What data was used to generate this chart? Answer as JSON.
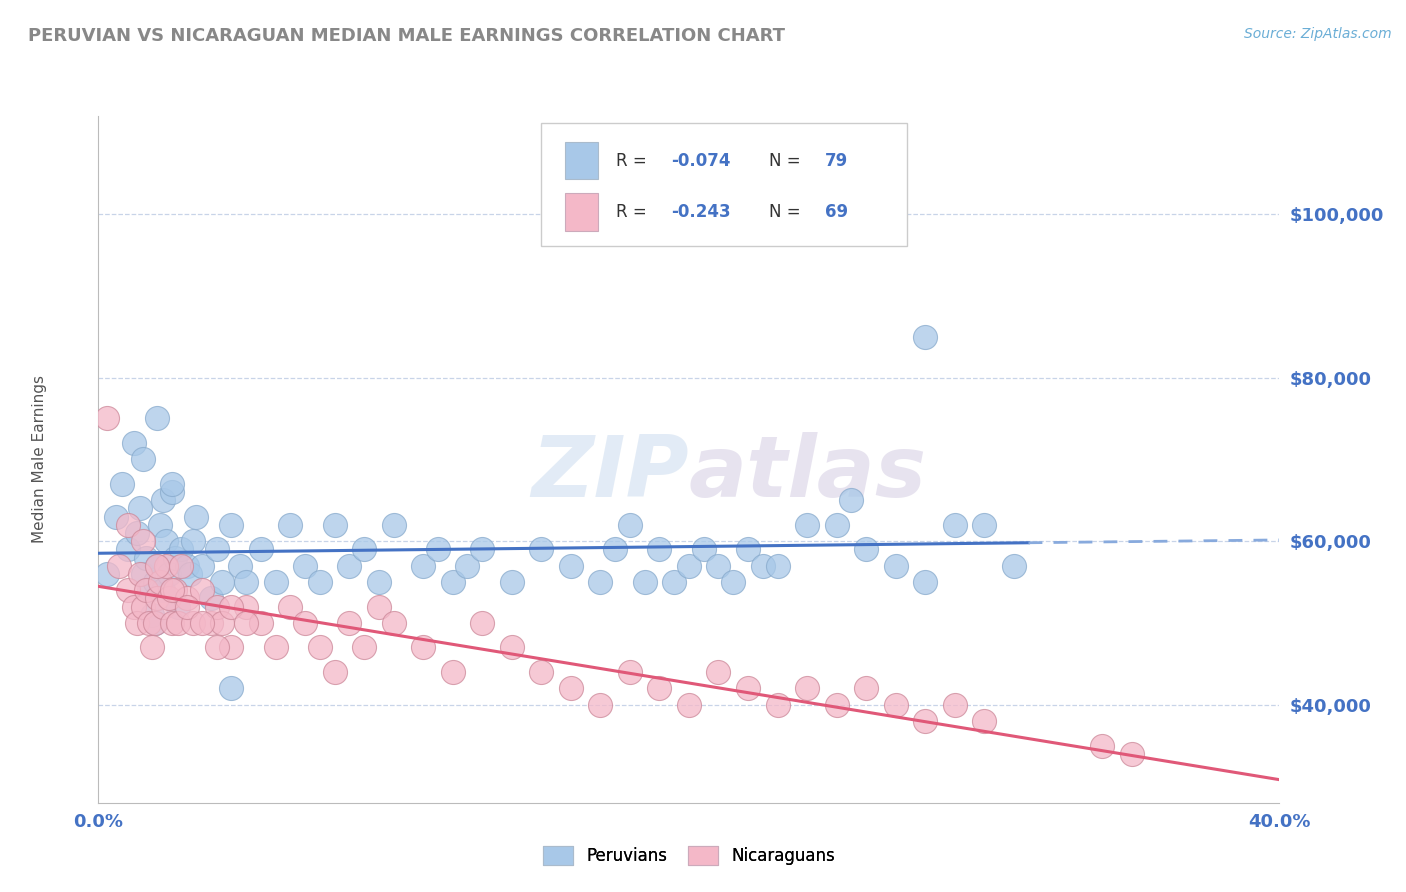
{
  "title": "PERUVIAN VS NICARAGUAN MEDIAN MALE EARNINGS CORRELATION CHART",
  "source_text": "Source: ZipAtlas.com",
  "ylabel": "Median Male Earnings",
  "xlim": [
    0.0,
    0.4
  ],
  "ylim": [
    28000,
    112000
  ],
  "ytick_labels": [
    "$40,000",
    "$60,000",
    "$80,000",
    "$100,000"
  ],
  "ytick_values": [
    40000,
    60000,
    80000,
    100000
  ],
  "watermark": "ZIPatlas",
  "blue_color": "#a8c8e8",
  "pink_color": "#f4b8c8",
  "trend_blue": "#4472c4",
  "trend_pink": "#e05878",
  "tick_color": "#4472c4",
  "bg_color": "#ffffff",
  "grid_color": "#c8d4e8",
  "title_color": "#888888",
  "peruvians_x": [
    0.003,
    0.006,
    0.008,
    0.01,
    0.012,
    0.013,
    0.014,
    0.015,
    0.016,
    0.017,
    0.018,
    0.019,
    0.019,
    0.02,
    0.021,
    0.022,
    0.022,
    0.023,
    0.024,
    0.025,
    0.026,
    0.027,
    0.028,
    0.03,
    0.031,
    0.032,
    0.033,
    0.035,
    0.038,
    0.04,
    0.042,
    0.045,
    0.048,
    0.05,
    0.055,
    0.06,
    0.065,
    0.07,
    0.075,
    0.08,
    0.085,
    0.09,
    0.095,
    0.1,
    0.11,
    0.115,
    0.12,
    0.125,
    0.13,
    0.14,
    0.15,
    0.16,
    0.17,
    0.175,
    0.18,
    0.185,
    0.19,
    0.195,
    0.2,
    0.205,
    0.21,
    0.215,
    0.22,
    0.225,
    0.23,
    0.24,
    0.25,
    0.255,
    0.26,
    0.27,
    0.28,
    0.29,
    0.3,
    0.31,
    0.015,
    0.02,
    0.025,
    0.045,
    0.28
  ],
  "peruvians_y": [
    56000,
    63000,
    67000,
    59000,
    72000,
    61000,
    64000,
    56000,
    58000,
    54000,
    51000,
    50000,
    55000,
    57000,
    62000,
    65000,
    54000,
    60000,
    56000,
    66000,
    58000,
    52000,
    59000,
    57000,
    56000,
    60000,
    63000,
    57000,
    53000,
    59000,
    55000,
    62000,
    57000,
    55000,
    59000,
    55000,
    62000,
    57000,
    55000,
    62000,
    57000,
    59000,
    55000,
    62000,
    57000,
    59000,
    55000,
    57000,
    59000,
    55000,
    59000,
    57000,
    55000,
    59000,
    62000,
    55000,
    59000,
    55000,
    57000,
    59000,
    57000,
    55000,
    59000,
    57000,
    57000,
    62000,
    62000,
    65000,
    59000,
    57000,
    55000,
    62000,
    62000,
    57000,
    70000,
    75000,
    67000,
    42000,
    85000
  ],
  "nicaraguans_x": [
    0.003,
    0.007,
    0.01,
    0.012,
    0.013,
    0.014,
    0.015,
    0.016,
    0.017,
    0.018,
    0.019,
    0.02,
    0.021,
    0.022,
    0.023,
    0.024,
    0.025,
    0.026,
    0.027,
    0.028,
    0.03,
    0.032,
    0.035,
    0.038,
    0.04,
    0.042,
    0.045,
    0.05,
    0.055,
    0.06,
    0.065,
    0.07,
    0.075,
    0.08,
    0.085,
    0.09,
    0.095,
    0.1,
    0.11,
    0.12,
    0.13,
    0.14,
    0.15,
    0.16,
    0.17,
    0.18,
    0.19,
    0.2,
    0.21,
    0.22,
    0.23,
    0.24,
    0.25,
    0.26,
    0.27,
    0.28,
    0.29,
    0.3,
    0.34,
    0.01,
    0.015,
    0.02,
    0.025,
    0.03,
    0.035,
    0.04,
    0.045,
    0.05,
    0.35
  ],
  "nicaraguans_y": [
    75000,
    57000,
    54000,
    52000,
    50000,
    56000,
    52000,
    54000,
    50000,
    47000,
    50000,
    53000,
    55000,
    52000,
    57000,
    53000,
    50000,
    54000,
    50000,
    57000,
    53000,
    50000,
    54000,
    50000,
    52000,
    50000,
    47000,
    52000,
    50000,
    47000,
    52000,
    50000,
    47000,
    44000,
    50000,
    47000,
    52000,
    50000,
    47000,
    44000,
    50000,
    47000,
    44000,
    42000,
    40000,
    44000,
    42000,
    40000,
    44000,
    42000,
    40000,
    42000,
    40000,
    42000,
    40000,
    38000,
    40000,
    38000,
    35000,
    62000,
    60000,
    57000,
    54000,
    52000,
    50000,
    47000,
    52000,
    50000,
    34000
  ]
}
